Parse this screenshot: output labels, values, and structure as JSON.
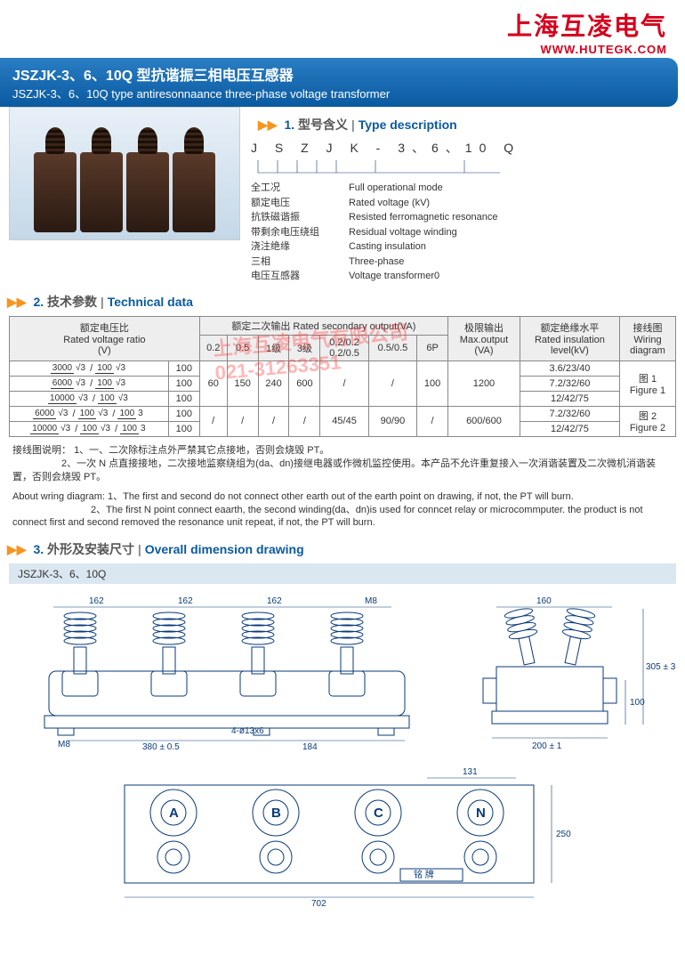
{
  "brand": {
    "cn": "上海互凌电气",
    "url": "WWW.HUTEGK.COM"
  },
  "title": {
    "cn": "JSZJK-3、6、10Q 型抗谐振三相电压互感器",
    "en": "JSZJK-3、6、10Q type antiresonnaance three-phase voltage transformer"
  },
  "sec1": {
    "num": "1.",
    "cn": "型号含义",
    "en": "Type description"
  },
  "model": "J S Z J K - 3、6、10 Q",
  "type_rows": [
    {
      "cn": "全工况",
      "en": "Full operational mode"
    },
    {
      "cn": "额定电压",
      "en": "Rated voltage (kV)"
    },
    {
      "cn": "抗铁磁谐振",
      "en": "Resisted ferromagnetic resonance"
    },
    {
      "cn": "带剩余电压绕组",
      "en": "Residual voltage winding"
    },
    {
      "cn": "浇注绝缘",
      "en": "Casting insulation"
    },
    {
      "cn": "三相",
      "en": "Three-phase"
    },
    {
      "cn": "电压互感器",
      "en": "Voltage transformer0"
    }
  ],
  "sec2": {
    "num": "2.",
    "cn": "技术参数",
    "en": "Technical data"
  },
  "th": {
    "ratio_cn": "额定电压比",
    "ratio_en": "Rated voltage ratio",
    "ratio_unit": "(V)",
    "out_cn": "额定二次输出",
    "out_en": "Rated secondary output(VA)",
    "c02": "0.2",
    "c05": "0.5",
    "c1": "1级",
    "c3": "3级",
    "c0202t": "0.2/0.2",
    "c0202b": "0.2/0.5",
    "c0505": "0.5/0.5",
    "c6p": "6P",
    "max_cn": "极限输出",
    "max_en": "Max.output",
    "max_unit": "(VA)",
    "ins_cn": "额定绝缘水平",
    "ins_en": "Rated insulation",
    "ins_unit": "level(kV)",
    "wir_cn": "接线图",
    "wir_en": "Wiring",
    "wir_unit": "diagram"
  },
  "rows": [
    {
      "r1": "3000",
      "r2": "100",
      "v1": "60",
      "v2": "150",
      "v3": "240",
      "v4": "600",
      "v5": "/",
      "v6": "/",
      "v7": "100",
      "max": "1200",
      "ins": "3.6/23/40",
      "wir": "图 1\nFigure 1",
      "shade": false
    },
    {
      "r1": "6000",
      "r2": "100",
      "ins": "7.2/32/60",
      "shade": true
    },
    {
      "r1": "10000",
      "r2": "100",
      "ins": "12/42/75",
      "shade": false
    },
    {
      "r1": "6000",
      "r2": "100",
      "r3": "100",
      "v1": "/",
      "v2": "/",
      "v3": "/",
      "v4": "/",
      "v5": "45/45",
      "v6": "90/90",
      "v7": "/",
      "max": "600/600",
      "ins": "7.2/32/60",
      "wir": "图 2\nFigure 2",
      "shade": true
    },
    {
      "r1": "10000",
      "r2": "100",
      "r3": "100",
      "ins": "12/42/75",
      "shade": false
    }
  ],
  "notes_cn_label": "接线图说明：",
  "notes_cn": [
    "1、一、二次除标注点外严禁其它点接地，否则会烧毁 PT。",
    "2、一次 N 点直接接地，二次接地监察绕组为(da、dn)接继电器或作微机监控使用。本产品不允许重复接入一次消谐装置及二次微机消谐装置，否则会烧毁 PT。"
  ],
  "notes_en_label": "About wring diagram:",
  "notes_en": [
    "1、The first and second do not connect other earth out of the earth point on drawing, if not, the PT will burn.",
    "2、The first N point connect eaarth, the second winding(da、dn)is used for conncet relay or microcommputer. the product is not connect first and second removed the resonance unit repeat, if not, the PT will burn."
  ],
  "sec3": {
    "num": "3.",
    "cn": "外形及安装尺寸",
    "en": "Overall dimension drawing"
  },
  "dim_label": "JSZJK-3、6、10Q",
  "dims": {
    "d162": "162",
    "m8": "M8",
    "d380": "380 ± 0.5",
    "d184": "184",
    "hole": "4-ø13x6",
    "d160": "160",
    "d200": "200 ± 1",
    "d100": "100",
    "d305": "305 ± 3",
    "d131": "131",
    "d702": "702",
    "d250": "250",
    "a": "A",
    "b": "B",
    "c": "C",
    "n": "N",
    "np": "铭 牌"
  },
  "watermark": "上海互凌电气有限公司\n021-31263351"
}
